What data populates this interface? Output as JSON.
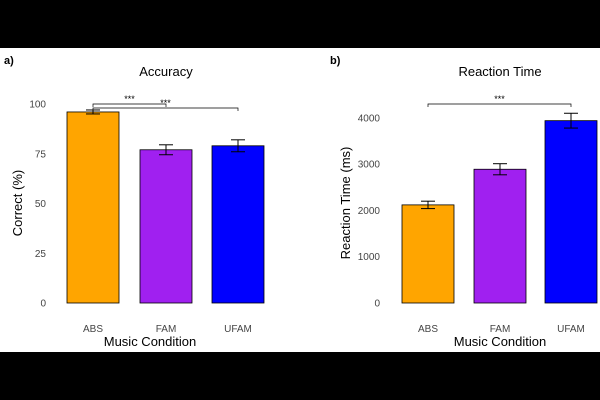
{
  "chart_data": [
    {
      "type": "bar",
      "panel": "a)",
      "title": "Accuracy",
      "xlabel": "Music Condition",
      "ylabel": "Correct (%)",
      "categories": [
        "ABS",
        "FAM",
        "UFAM"
      ],
      "values": [
        96,
        77,
        79
      ],
      "errors": [
        1,
        2.5,
        3
      ],
      "colors": [
        "#FFA500",
        "#A020F0",
        "#0000FF"
      ],
      "ylim": [
        0,
        100
      ],
      "yticks": [
        "0",
        "25",
        "50",
        "75",
        "100"
      ],
      "grid": false,
      "significance": [
        {
          "from": 0,
          "to": 1,
          "label": "***"
        },
        {
          "from": 0,
          "to": 2,
          "label": "***"
        }
      ]
    },
    {
      "type": "bar",
      "panel": "b)",
      "title": "Reaction Time",
      "xlabel": "Music Condition",
      "ylabel": "Reaction Time (ms)",
      "categories": [
        "ABS",
        "FAM",
        "UFAM"
      ],
      "values": [
        2120,
        2890,
        3940
      ],
      "errors": [
        80,
        120,
        160
      ],
      "colors": [
        "#FFA500",
        "#A020F0",
        "#0000FF"
      ],
      "ylim": [
        0,
        4300
      ],
      "yticks": [
        "0",
        "1000",
        "2000",
        "3000",
        "4000"
      ],
      "grid": false,
      "significance": [
        {
          "from": 0,
          "to": 2,
          "label": "***"
        }
      ]
    }
  ]
}
